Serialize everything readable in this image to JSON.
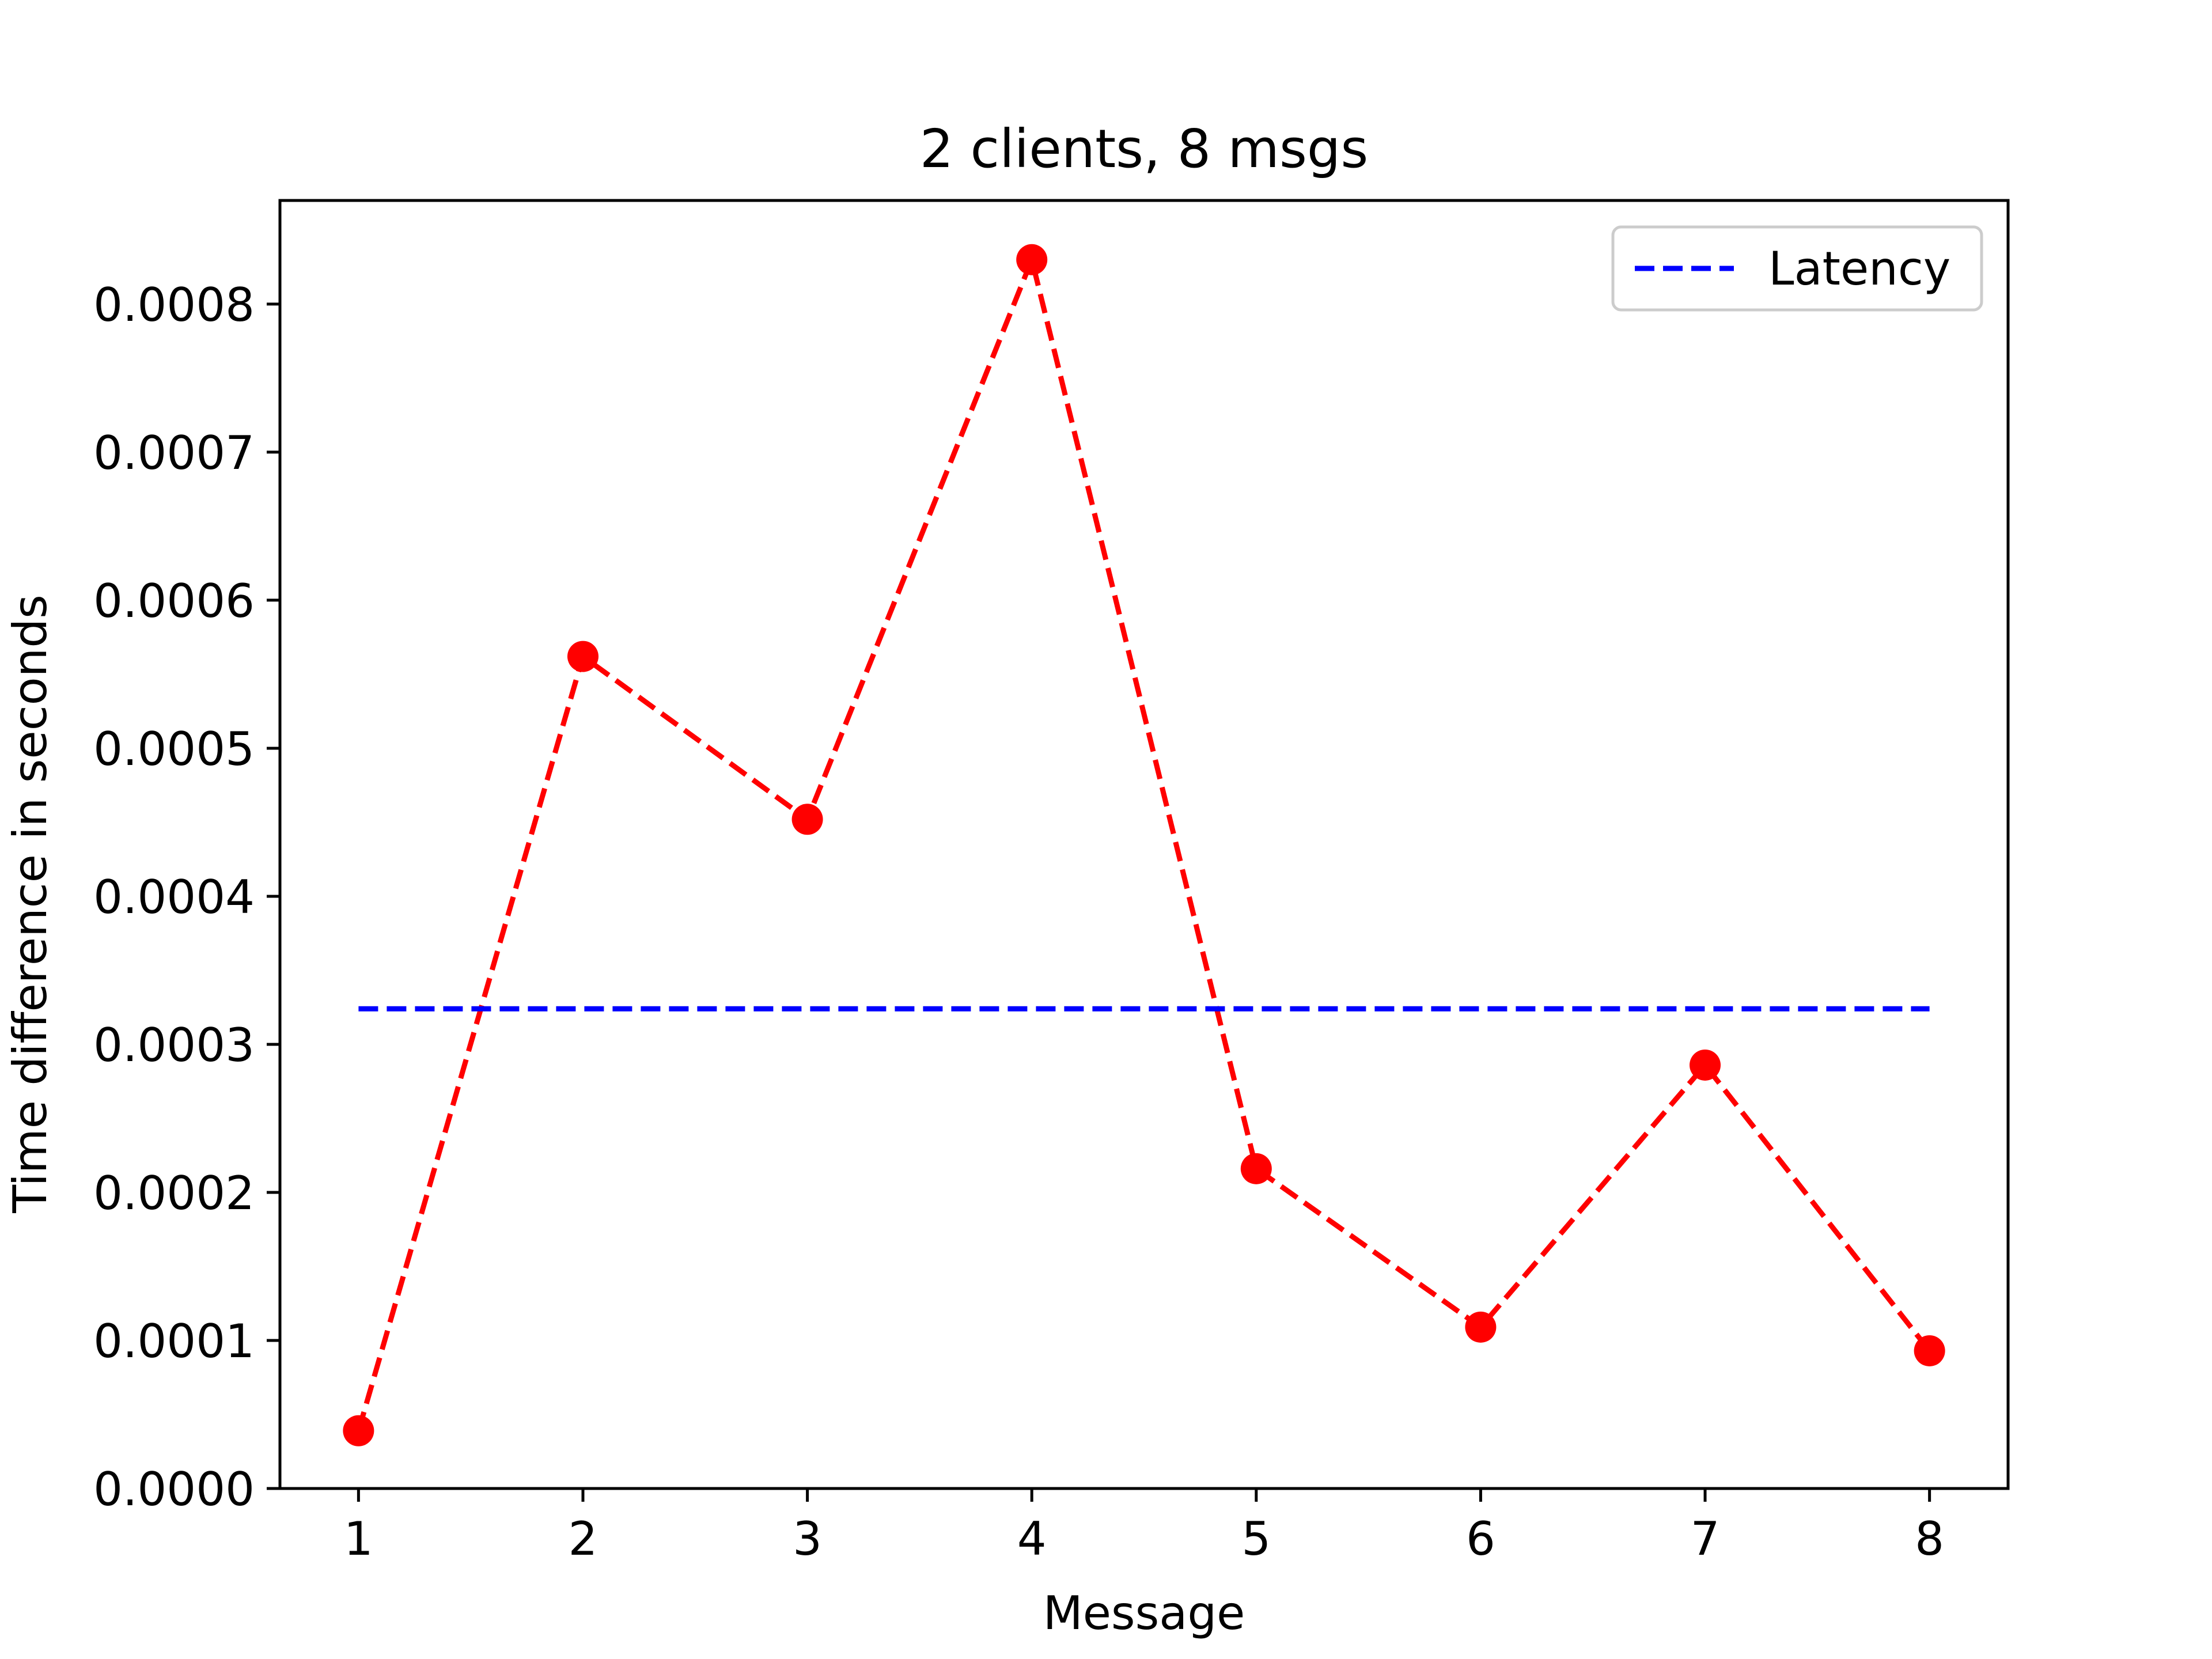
{
  "chart_data": {
    "type": "line",
    "title": "2 clients, 8 msgs",
    "xlabel": "Message",
    "ylabel": "Time difference in seconds",
    "x": [
      1,
      2,
      3,
      4,
      5,
      6,
      7,
      8
    ],
    "xticks": [
      "1",
      "2",
      "3",
      "4",
      "5",
      "6",
      "7",
      "8"
    ],
    "yticks": [
      "0.0000",
      "0.0001",
      "0.0002",
      "0.0003",
      "0.0004",
      "0.0005",
      "0.0006",
      "0.0007",
      "0.0008"
    ],
    "ylim": [
      0,
      0.00087
    ],
    "series": [
      {
        "values": [
          3.9e-05,
          0.000562,
          0.000452,
          0.00083,
          0.000216,
          0.000109,
          0.000286,
          9.3e-05
        ],
        "color": "#ff0000",
        "style": "dashed",
        "marker": "circle"
      },
      {
        "name": "Latency",
        "values": [
          0.000324,
          0.000324,
          0.000324,
          0.000324,
          0.000324,
          0.000324,
          0.000324,
          0.000324
        ],
        "color": "#0000ff",
        "style": "dashed",
        "marker": "none"
      }
    ],
    "legend": {
      "position": "top-right"
    },
    "grid": false
  }
}
